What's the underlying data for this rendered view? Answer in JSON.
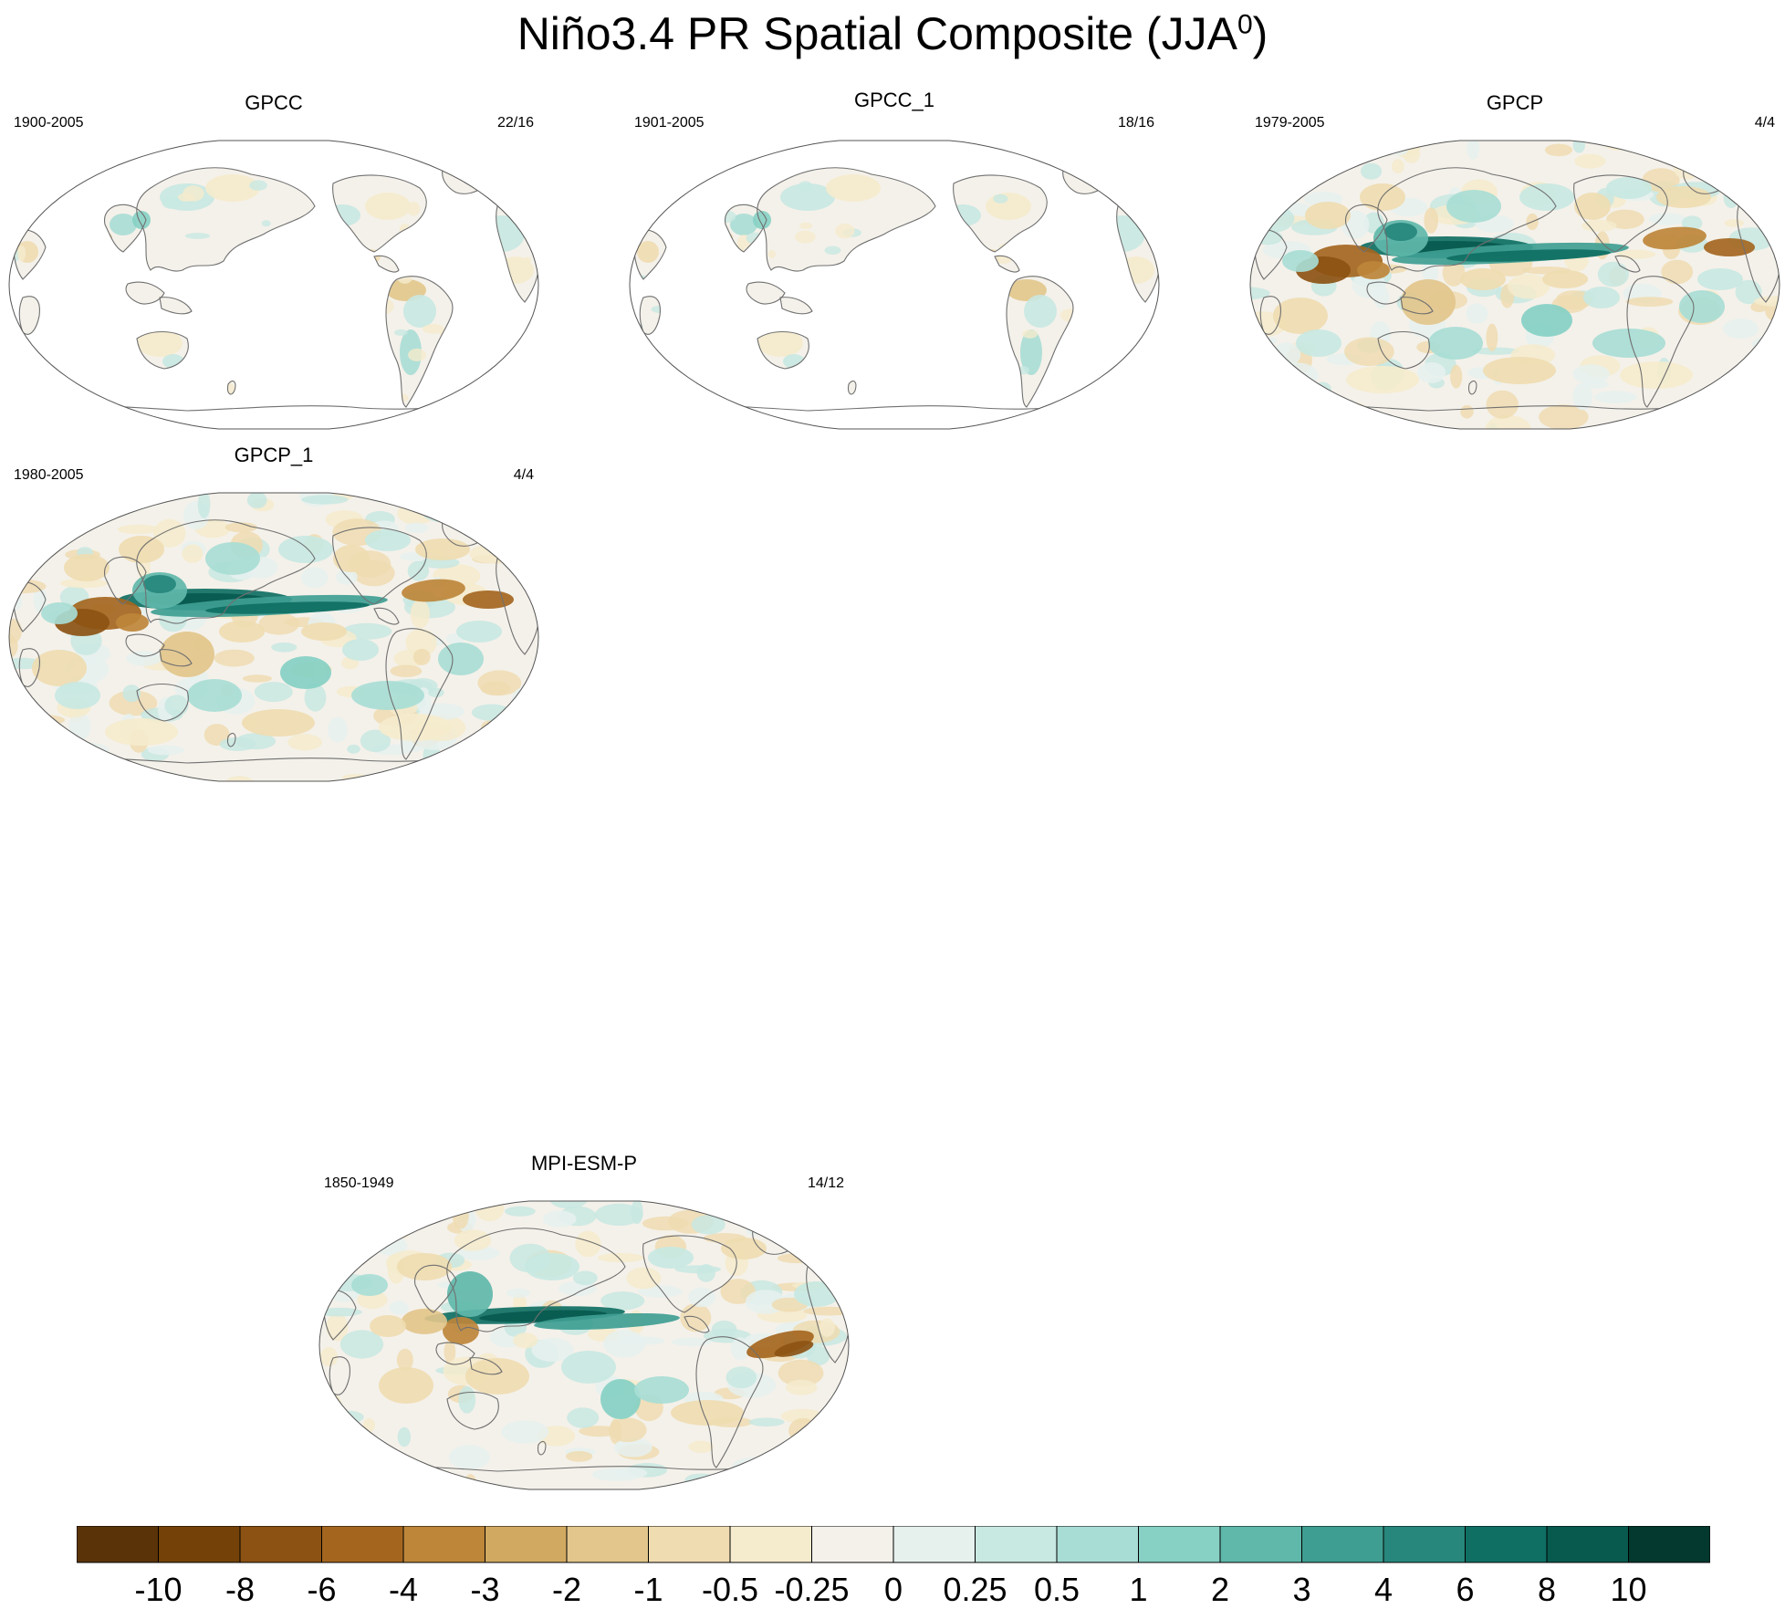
{
  "title": "Niño3.4 PR Spatial Composite (JJA",
  "title_sup": "0",
  "title_close": ")",
  "chart_data": [
    {
      "type": "heatmap",
      "title": "GPCC",
      "left_string": "1900-2005",
      "right_string": "22/16",
      "coverage": "land"
    },
    {
      "type": "heatmap",
      "title": "GPCC_1",
      "left_string": "1901-2005",
      "right_string": "18/16",
      "coverage": "land"
    },
    {
      "type": "heatmap",
      "title": "GPCP",
      "left_string": "1979-2005",
      "right_string": "4/4",
      "coverage": "global"
    },
    {
      "type": "heatmap",
      "title": "GPCP_1",
      "left_string": "1980-2005",
      "right_string": "4/4",
      "coverage": "global"
    },
    {
      "type": "heatmap",
      "title": "MPI-ESM-P",
      "left_string": "1850-1949",
      "right_string": "14/12",
      "coverage": "global"
    }
  ],
  "colorbar": {
    "labels": [
      "-10",
      "-8",
      "-6",
      "-4",
      "-3",
      "-2",
      "-1",
      "-0.5",
      "-0.25",
      "0",
      "0.25",
      "0.5",
      "1",
      "2",
      "3",
      "4",
      "6",
      "8",
      "10"
    ],
    "colors": [
      "#5a3408",
      "#744209",
      "#8c5213",
      "#a4661f",
      "#bd8639",
      "#d1a961",
      "#e2c68b",
      "#efdcb1",
      "#f5ebcd",
      "#f4f1ea",
      "#e6f1ee",
      "#c8e8e2",
      "#a8ddd5",
      "#86d0c4",
      "#5fb8aa",
      "#3f9e92",
      "#27877c",
      "#0f6f63",
      "#085a4e",
      "#03392f"
    ]
  }
}
